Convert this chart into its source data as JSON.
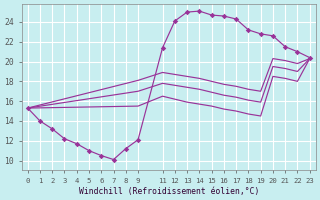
{
  "bg_color": "#c8eef0",
  "grid_color": "#ffffff",
  "line_color": "#993399",
  "xlabel": "Windchill (Refroidissement éolien,°C)",
  "xlim": [
    -0.5,
    23.5
  ],
  "ylim": [
    9.0,
    25.8
  ],
  "xticks": [
    0,
    1,
    2,
    3,
    4,
    5,
    6,
    7,
    8,
    9,
    11,
    12,
    13,
    14,
    15,
    16,
    17,
    18,
    19,
    20,
    21,
    22,
    23
  ],
  "yticks": [
    10,
    12,
    14,
    16,
    18,
    20,
    22,
    24
  ],
  "loop_x": [
    0,
    1,
    2,
    3,
    4,
    5,
    6,
    7,
    8,
    9,
    11,
    12,
    13,
    14,
    15,
    16,
    17,
    18,
    19,
    20,
    21,
    22,
    23
  ],
  "loop_y": [
    15.3,
    14.0,
    13.2,
    12.2,
    11.7,
    11.0,
    10.5,
    10.1,
    11.2,
    12.1,
    21.4,
    24.1,
    25.0,
    25.1,
    24.7,
    24.6,
    24.3,
    23.2,
    22.8,
    22.6,
    21.5,
    21.0,
    20.4
  ],
  "diag1_x": [
    0,
    9,
    11,
    12,
    13,
    14,
    15,
    16,
    17,
    18,
    19,
    20,
    21,
    22,
    23
  ],
  "diag1_y": [
    15.3,
    18.1,
    18.9,
    18.7,
    18.5,
    18.3,
    18.0,
    17.7,
    17.5,
    17.2,
    17.0,
    20.3,
    20.1,
    19.8,
    20.3
  ],
  "diag2_x": [
    0,
    9,
    11,
    12,
    13,
    14,
    15,
    16,
    17,
    18,
    19,
    20,
    21,
    22,
    23
  ],
  "diag2_y": [
    15.3,
    17.0,
    17.8,
    17.6,
    17.4,
    17.2,
    16.9,
    16.6,
    16.4,
    16.1,
    15.9,
    19.5,
    19.3,
    19.0,
    20.3
  ],
  "diag3_x": [
    0,
    9,
    11,
    12,
    13,
    14,
    15,
    16,
    17,
    18,
    19,
    20,
    21,
    22,
    23
  ],
  "diag3_y": [
    15.3,
    15.5,
    16.5,
    16.2,
    15.9,
    15.7,
    15.5,
    15.2,
    15.0,
    14.7,
    14.5,
    18.5,
    18.3,
    18.0,
    20.3
  ]
}
